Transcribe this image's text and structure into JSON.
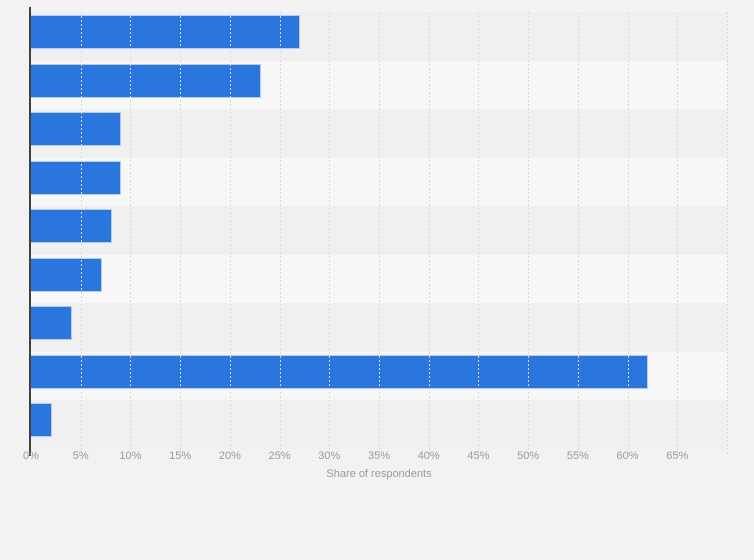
{
  "page": {
    "background_color": "#f2f2f2"
  },
  "chart_data": {
    "type": "bar",
    "orientation": "horizontal",
    "title": "",
    "xlabel": "Share of respondents",
    "ylabel": "",
    "unit": "%",
    "categories": [
      "",
      "",
      "",
      "",
      "",
      "",
      "",
      "",
      ""
    ],
    "values": [
      27,
      23,
      9,
      9,
      8,
      7,
      4,
      62,
      2
    ],
    "xlim": [
      0,
      70
    ],
    "tick_step": 5,
    "x_tick_labels": [
      "0%",
      "5%",
      "10%",
      "15%",
      "20%",
      "25%",
      "30%",
      "35%",
      "40%",
      "45%",
      "50%",
      "55%",
      "60%",
      "65%"
    ],
    "gridlines": "vertical-dashed-every-5pct",
    "legend_position": "none",
    "colors": {
      "bar_fill": "#2b76dc",
      "bar_border": "#b3ccf0",
      "row_band_odd": "#f0f0f0",
      "row_band_even": "#f7f7f7",
      "gridline": "#d9d9d9",
      "axis_line": "#404040",
      "tick_text": "#9a9a9a",
      "axis_title_text": "#9a9a9a"
    }
  }
}
